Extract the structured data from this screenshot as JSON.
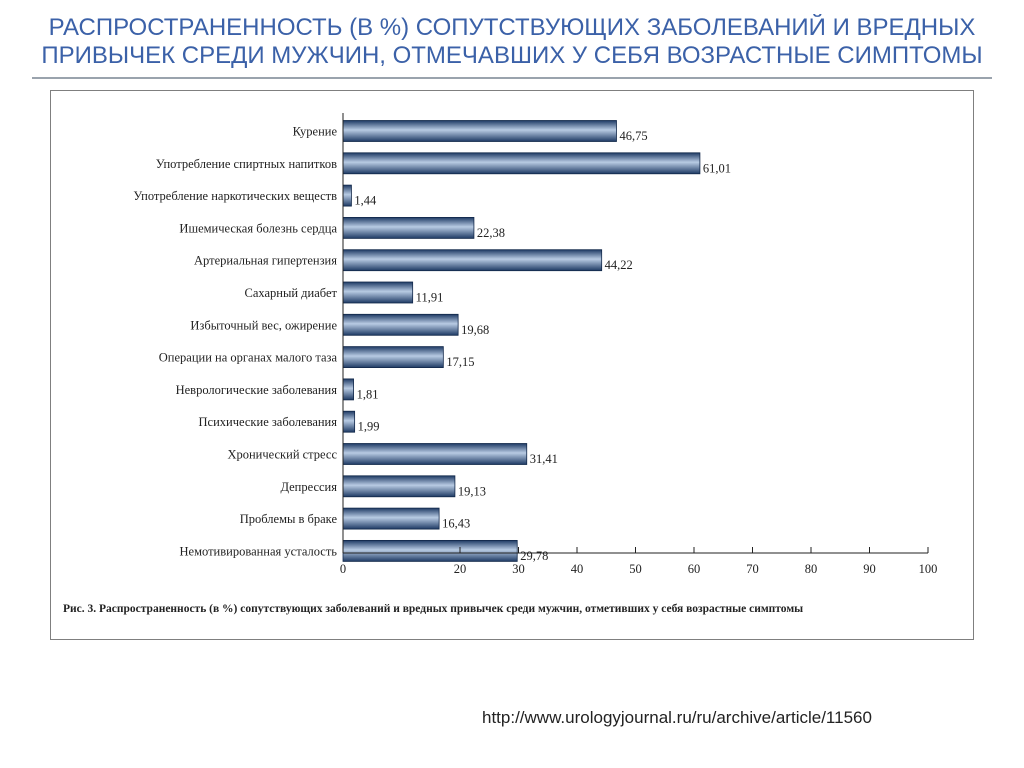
{
  "slide": {
    "title": "РАСПРОСТРАНЕННОСТЬ (В %) СОПУТСТВУЮЩИХ ЗАБОЛЕВАНИЙ И ВРЕДНЫХ ПРИВЫЧЕК СРЕДИ МУЖЧИН, ОТМЕЧАВШИХ У СЕБЯ ВОЗРАСТНЫЕ СИМПТОМЫ",
    "source_url": "http://www.urologyjournal.ru/ru/archive/article/11560",
    "colors": {
      "title": "#3b61a8",
      "bar_dark": "#1e3a64",
      "bar_light": "#b8cbe3"
    }
  },
  "chart_data": {
    "type": "bar",
    "orientation": "horizontal",
    "caption_bold": "Рис. 3.",
    "caption": "Распространенность (в %) сопутствующих заболеваний и вредных привычек среди мужчин, отметивших у себя возрастные симптомы",
    "categories": [
      "Курение",
      "Употребление спиртных напитков",
      "Употребление наркотических веществ",
      "Ишемическая болезнь сердца",
      "Артериальная гипертензия",
      "Сахарный диабет",
      "Избыточный вес, ожирение",
      "Операции на органах малого таза",
      "Неврологические заболевания",
      "Психические заболевания",
      "Хронический стресс",
      "Депрессия",
      "Проблемы в браке",
      "Немотивированная усталость"
    ],
    "values": [
      46.75,
      61.01,
      1.44,
      22.38,
      44.22,
      11.91,
      19.68,
      17.15,
      1.81,
      1.99,
      31.41,
      19.13,
      16.43,
      29.78
    ],
    "value_labels": [
      "46,75",
      "61,01",
      "1,44",
      "22,38",
      "44,22",
      "11,91",
      "19,68",
      "17,15",
      "1,81",
      "1,99",
      "31,41",
      "19,13",
      "16,43",
      "29,78"
    ],
    "xlim": [
      0,
      100
    ],
    "xticks": [
      0,
      20,
      30,
      40,
      50,
      60,
      70,
      80,
      90,
      100
    ],
    "xtick_labels": [
      "0",
      "20",
      "30",
      "40",
      "50",
      "60",
      "70",
      "80",
      "90",
      "100"
    ],
    "grid": false
  }
}
